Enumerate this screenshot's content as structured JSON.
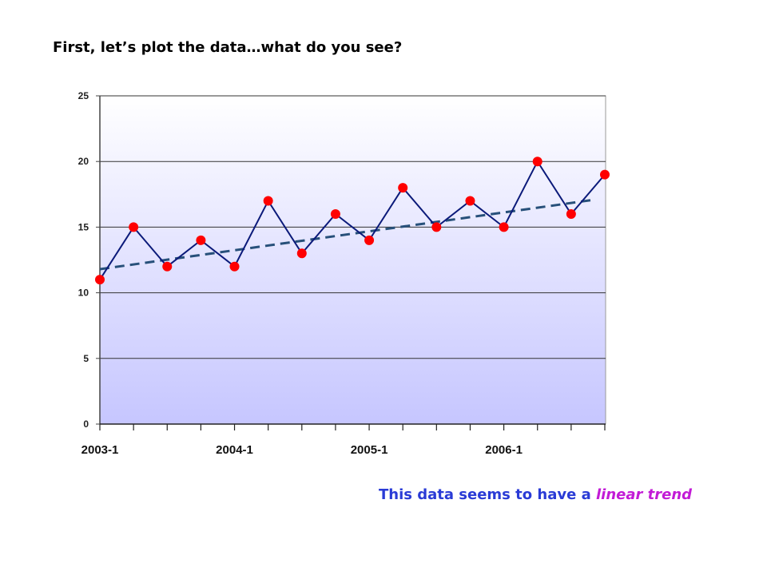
{
  "heading": "First, let’s plot the data…what do you see?",
  "caption": {
    "prefix": "This data seems to have a ",
    "emphasis": "linear trend"
  },
  "colors": {
    "series_line": "#0b1a7a",
    "marker": "#ff0000",
    "trend": "#27507a",
    "bg_top": "#ffffff",
    "bg_bottom": "#c6c6ff",
    "caption": "#2a3bd6",
    "caption_emphasis": "#c21bd6"
  },
  "chart_data": {
    "type": "line",
    "x_labels": [
      "2003-1",
      "2004-1",
      "2005-1",
      "2006-1"
    ],
    "x_label_positions": [
      0,
      4,
      8,
      12
    ],
    "points": 16,
    "series": [
      {
        "values": [
          11,
          15,
          12,
          14,
          12,
          17,
          13,
          16,
          14,
          18,
          15,
          17,
          15,
          20,
          16,
          19
        ]
      }
    ],
    "trendline": {
      "type": "linear",
      "start": 11.8,
      "end": 17.2
    },
    "ylim": [
      0,
      25
    ],
    "y_ticks": [
      0,
      5,
      10,
      15,
      20,
      25
    ],
    "grid": true
  }
}
